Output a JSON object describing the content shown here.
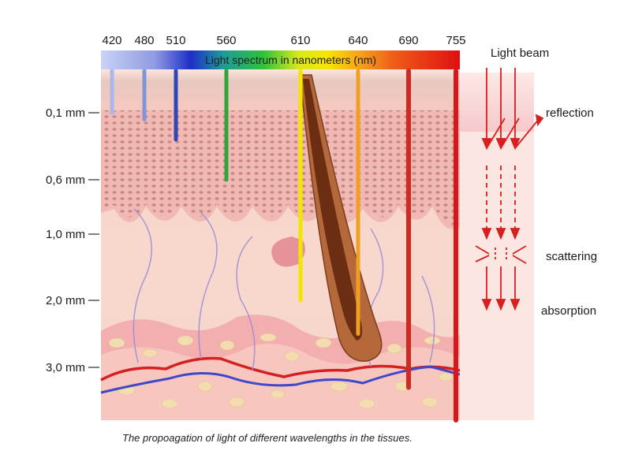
{
  "spectrum": {
    "title": "Light spectrum in nanometers (nm)",
    "wavelengths": [
      {
        "label": "420",
        "color": "#a9b7ee",
        "depth_mm": 0.1
      },
      {
        "label": "480",
        "color": "#7f95d8",
        "depth_mm": 0.15
      },
      {
        "label": "510",
        "color": "#2e47b8",
        "depth_mm": 0.3
      },
      {
        "label": "560",
        "color": "#2fa53a",
        "depth_mm": 0.6
      },
      {
        "label": "610",
        "color": "#f2e600",
        "depth_mm": 2.0
      },
      {
        "label": "640",
        "color": "#f0a020",
        "depth_mm": 2.5
      },
      {
        "label": "690",
        "color": "#cf2a22",
        "depth_mm": 3.3
      },
      {
        "label": "755",
        "color": "#d81818",
        "depth_mm": 3.8
      }
    ]
  },
  "depth_axis": {
    "ticks": [
      "0,1 mm",
      "0,6 mm",
      "1,0 mm",
      "2,0 mm",
      "3,0 mm"
    ]
  },
  "beam_panel": {
    "title": "Light beam",
    "labels": {
      "reflection": "reflection",
      "scattering": "scattering",
      "absorption": "absorption"
    }
  },
  "caption": "The propoagation of light of different wavelengths in the tissues.",
  "colors": {
    "skin_light": "#f7d2c6",
    "skin_mid": "#f0b5b0",
    "dermis": "#f5c7bd",
    "subcutis": "#f3a0a5",
    "fat": "#f2dcb0",
    "artery": "#d42020",
    "vein": "#4048c8",
    "hair": "#8a4a2a"
  }
}
